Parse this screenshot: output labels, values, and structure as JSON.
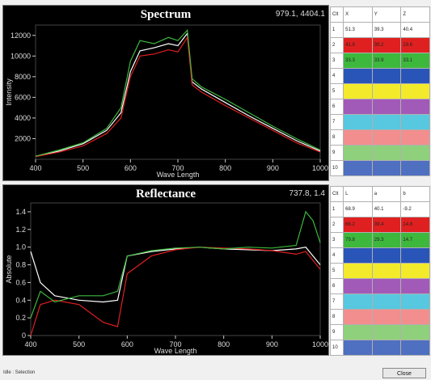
{
  "spectrum_panel": {
    "title": "Spectrum",
    "coord": "979.1, 4404.1"
  },
  "reflectance_panel": {
    "title": "Reflectance",
    "coord": "737.8, 1.4"
  },
  "table1": {
    "headers": [
      "Clt",
      "X",
      "Y",
      "Z"
    ],
    "rows": [
      {
        "n": "1",
        "vals": [
          "51.3",
          "39.3",
          "40.4"
        ],
        "color": "#ffffff"
      },
      {
        "n": "2",
        "vals": [
          "41.9",
          "39.2",
          "29.6"
        ],
        "color": "#e02020"
      },
      {
        "n": "3",
        "vals": [
          "33.3",
          "33.9",
          "33.1"
        ],
        "color": "#3db83d"
      },
      {
        "n": "4",
        "vals": [
          "",
          "",
          ""
        ],
        "color": "#2a55b8"
      },
      {
        "n": "5",
        "vals": [
          "",
          "",
          ""
        ],
        "color": "#f3ea2b"
      },
      {
        "n": "6",
        "vals": [
          "",
          "",
          ""
        ],
        "color": "#a25ab8"
      },
      {
        "n": "7",
        "vals": [
          "",
          "",
          ""
        ],
        "color": "#57c8df"
      },
      {
        "n": "8",
        "vals": [
          "",
          "",
          ""
        ],
        "color": "#f28e8e"
      },
      {
        "n": "9",
        "vals": [
          "",
          "",
          ""
        ],
        "color": "#8fd07c"
      },
      {
        "n": "10",
        "vals": [
          "",
          "",
          ""
        ],
        "color": "#4f6fc0"
      }
    ]
  },
  "table2": {
    "headers": [
      "Clt",
      "L",
      "a",
      "b"
    ],
    "rows": [
      {
        "n": "1",
        "vals": [
          "68.9",
          "40.1",
          "-9.2"
        ],
        "color": "#ffffff"
      },
      {
        "n": "2",
        "vals": [
          "68.2",
          "39.4",
          "14.8"
        ],
        "color": "#e02020"
      },
      {
        "n": "3",
        "vals": [
          "79.8",
          "29.3",
          "14.7"
        ],
        "color": "#3db83d"
      },
      {
        "n": "4",
        "vals": [
          "",
          "",
          ""
        ],
        "color": "#2a55b8"
      },
      {
        "n": "5",
        "vals": [
          "",
          "",
          ""
        ],
        "color": "#f3ea2b"
      },
      {
        "n": "6",
        "vals": [
          "",
          "",
          ""
        ],
        "color": "#a25ab8"
      },
      {
        "n": "7",
        "vals": [
          "",
          "",
          ""
        ],
        "color": "#57c8df"
      },
      {
        "n": "8",
        "vals": [
          "",
          "",
          ""
        ],
        "color": "#f28e8e"
      },
      {
        "n": "9",
        "vals": [
          "",
          "",
          ""
        ],
        "color": "#8fd07c"
      },
      {
        "n": "10",
        "vals": [
          "",
          "",
          ""
        ],
        "color": "#4f6fc0"
      }
    ]
  },
  "status": {
    "text": "Idle : Selection"
  },
  "close_button": {
    "label": "Close"
  },
  "chart_data": [
    {
      "type": "line",
      "title": "Spectrum",
      "xlabel": "Wave Length",
      "ylabel": "Intensity",
      "xlim": [
        400,
        1000
      ],
      "ylim": [
        0,
        13000
      ],
      "xticks": [
        "400",
        "500",
        "600",
        "700",
        "800",
        "900",
        "1000"
      ],
      "yticks": [
        "2000",
        "4000",
        "6000",
        "8000",
        "10000",
        "12000"
      ],
      "x": [
        400,
        450,
        500,
        550,
        580,
        600,
        620,
        650,
        680,
        700,
        720,
        730,
        750,
        800,
        850,
        900,
        950,
        1000
      ],
      "series": [
        {
          "color": "#ffffff",
          "values": [
            300,
            800,
            1500,
            2800,
            4500,
            8500,
            10500,
            10800,
            11200,
            11000,
            12200,
            7500,
            6800,
            5500,
            4200,
            3000,
            1800,
            800
          ]
        },
        {
          "color": "#e02020",
          "values": [
            250,
            700,
            1300,
            2500,
            4000,
            8000,
            10000,
            10200,
            10600,
            10400,
            11800,
            7200,
            6500,
            5200,
            4000,
            2800,
            1600,
            700
          ]
        },
        {
          "color": "#3db83d",
          "values": [
            300,
            900,
            1600,
            3000,
            5000,
            9500,
            11500,
            11200,
            11800,
            11500,
            12500,
            7800,
            7000,
            5800,
            4500,
            3200,
            2000,
            900
          ]
        }
      ]
    },
    {
      "type": "line",
      "title": "Reflectance",
      "xlabel": "Wave Length",
      "ylabel": "Absolute",
      "xlim": [
        400,
        1000
      ],
      "ylim": [
        0,
        1.5
      ],
      "xticks": [
        "400",
        "500",
        "600",
        "700",
        "800",
        "900",
        "1000"
      ],
      "yticks": [
        "0",
        "0.2",
        "0.4",
        "0.6",
        "0.8",
        "1.0",
        "1.2",
        "1.4"
      ],
      "x": [
        400,
        420,
        450,
        500,
        550,
        580,
        600,
        650,
        700,
        750,
        800,
        850,
        900,
        950,
        970,
        985,
        1000
      ],
      "series": [
        {
          "color": "#ffffff",
          "values": [
            0.95,
            0.6,
            0.45,
            0.4,
            0.38,
            0.4,
            0.9,
            0.95,
            0.98,
            1.0,
            0.98,
            0.97,
            0.96,
            0.98,
            1.0,
            0.9,
            0.8
          ]
        },
        {
          "color": "#e02020",
          "values": [
            0.0,
            0.35,
            0.4,
            0.35,
            0.15,
            0.1,
            0.7,
            0.9,
            0.97,
            1.0,
            0.99,
            0.98,
            0.96,
            0.92,
            0.95,
            0.85,
            0.75
          ]
        },
        {
          "color": "#3db83d",
          "values": [
            0.2,
            0.5,
            0.38,
            0.45,
            0.45,
            0.5,
            0.9,
            0.96,
            0.99,
            1.0,
            0.98,
            1.0,
            0.99,
            1.02,
            1.4,
            1.3,
            1.05
          ]
        }
      ]
    }
  ]
}
